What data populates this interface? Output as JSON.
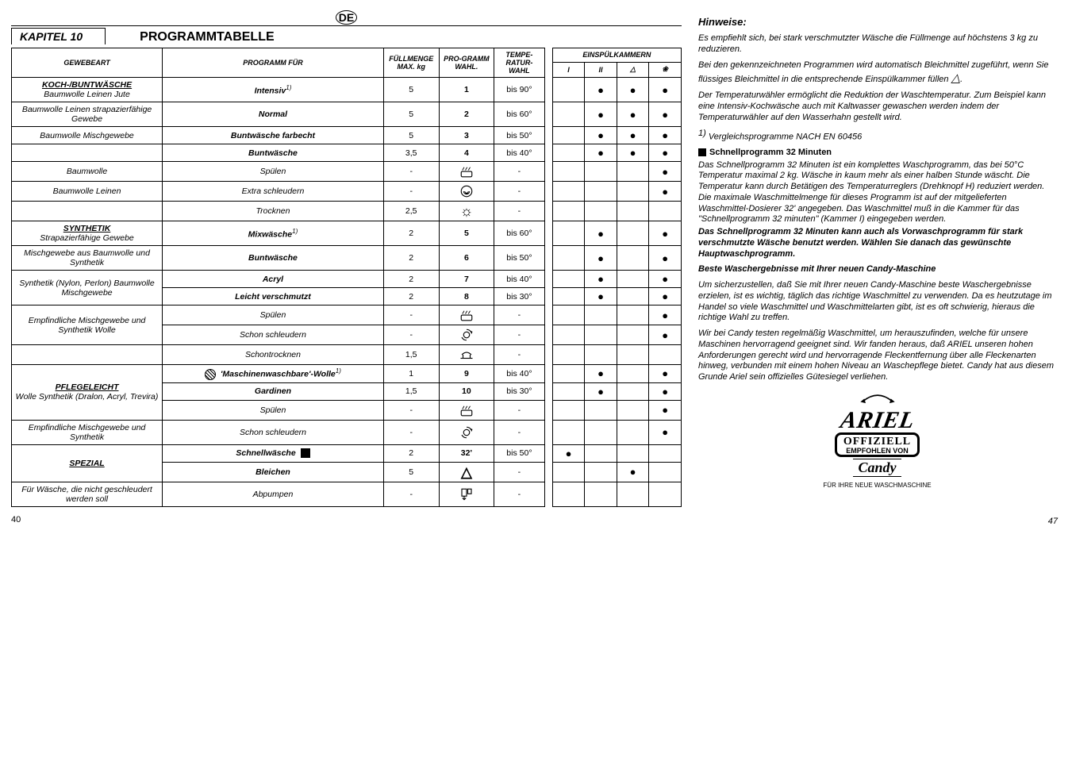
{
  "meta": {
    "langBadge": "DE",
    "kapitel": "KAPITEL 10",
    "title": "PROGRAMMTABELLE",
    "pageLeft": "40",
    "pageRight": "47"
  },
  "headers": {
    "gewebeart": "GEWEBEART",
    "programmFur": "PROGRAMM FÜR",
    "fullmenge": "FÜLLMENGE MAX. kg",
    "prowahl": "PRO-GRAMM WAHL.",
    "tempwahl": "TEMPE-RATUR-WAHL",
    "einspul": "EINSPÜLKAMMERN",
    "k1": "I",
    "k2": "II",
    "k3": "△",
    "k4": "❀"
  },
  "groups": {
    "koch": "KOCH-/BUNTWÄSCHE",
    "kochSub": "Baumwolle Leinen Jute",
    "baumLeinen": "Baumwolle Leinen strapazierfähige Gewebe",
    "baumMisch": "Baumwolle Mischgewebe",
    "baumwolle": "Baumwolle",
    "baumwolleLeinen": "Baumwolle Leinen",
    "synthetik": "SYNTHETIK",
    "synthSub": "Strapazierfähige Gewebe",
    "mischAus": "Mischgewebe aus Baumwolle und Synthetik",
    "nylon": "Synthetik (Nylon, Perlon) Baumwolle Mischgewebe",
    "empfMisch": "Empfindliche Mischgewebe und Synthetik Wolle",
    "pflege": "PFLEGELEICHT",
    "pflegeSub": "Wolle Synthetik (Dralon, Acryl, Trevira)",
    "empfMischSyn": "Empfindliche Mischgewebe und Synthetik",
    "spezial": "SPEZIAL",
    "furWasche": "Für Wäsche, die nicht geschleudert werden soll"
  },
  "rows": {
    "r1": {
      "prog": "Intensiv",
      "note": "1)",
      "kg": "5",
      "wahl": "1",
      "temp": "bis 90°",
      "k": [
        "",
        "●",
        "●",
        "●"
      ]
    },
    "r2": {
      "prog": "Normal",
      "kg": "5",
      "wahl": "2",
      "temp": "bis 60°",
      "k": [
        "",
        "●",
        "●",
        "●"
      ]
    },
    "r3": {
      "prog": "Buntwäsche farbecht",
      "kg": "5",
      "wahl": "3",
      "temp": "bis 50°",
      "k": [
        "",
        "●",
        "●",
        "●"
      ]
    },
    "r4": {
      "prog": "Buntwäsche",
      "kg": "3,5",
      "wahl": "4",
      "temp": "bis 40°",
      "k": [
        "",
        "●",
        "●",
        "●"
      ]
    },
    "r5": {
      "prog": "Spülen",
      "kg": "-",
      "wahl": "RINSE",
      "temp": "-",
      "k": [
        "",
        "",
        "",
        "●"
      ]
    },
    "r6": {
      "prog": "Extra schleudern",
      "kg": "-",
      "wahl": "SPIRAL",
      "temp": "-",
      "k": [
        "",
        "",
        "",
        "●"
      ]
    },
    "r7": {
      "prog": "Trocknen",
      "kg": "2,5",
      "wahl": "SUN",
      "temp": "-",
      "k": [
        "",
        "",
        "",
        ""
      ]
    },
    "r8": {
      "prog": "Mixwäsche",
      "note": "1)",
      "kg": "2",
      "wahl": "5",
      "temp": "bis 60°",
      "k": [
        "",
        "●",
        "",
        "●"
      ]
    },
    "r9": {
      "prog": "Buntwäsche",
      "kg": "2",
      "wahl": "6",
      "temp": "bis 50°",
      "k": [
        "",
        "●",
        "",
        "●"
      ]
    },
    "r10": {
      "prog": "Acryl",
      "kg": "2",
      "wahl": "7",
      "temp": "bis 40°",
      "k": [
        "",
        "●",
        "",
        "●"
      ]
    },
    "r11": {
      "prog": "Leicht verschmutzt",
      "kg": "2",
      "wahl": "8",
      "temp": "bis 30°",
      "k": [
        "",
        "●",
        "",
        "●"
      ]
    },
    "r12": {
      "prog": "Spülen",
      "kg": "-",
      "wahl": "RINSE",
      "temp": "-",
      "k": [
        "",
        "",
        "",
        "●"
      ]
    },
    "r13": {
      "prog": "Schon schleudern",
      "kg": "-",
      "wahl": "SPIN",
      "temp": "-",
      "k": [
        "",
        "",
        "",
        "●"
      ]
    },
    "r14": {
      "prog": "Schontrocknen",
      "kg": "1,5",
      "wahl": "DRY",
      "temp": "-",
      "k": [
        "",
        "",
        "",
        ""
      ]
    },
    "r15": {
      "prog": "'Maschinenwaschbare'-Wolle",
      "note": "1)",
      "pre": "HATCH",
      "kg": "1",
      "wahl": "9",
      "temp": "bis 40°",
      "k": [
        "",
        "●",
        "",
        "●"
      ]
    },
    "r16": {
      "prog": "Gardinen",
      "kg": "1,5",
      "wahl": "10",
      "temp": "bis 30°",
      "k": [
        "",
        "●",
        "",
        "●"
      ]
    },
    "r17": {
      "prog": "Spülen",
      "kg": "-",
      "wahl": "RINSE",
      "temp": "-",
      "k": [
        "",
        "",
        "",
        "●"
      ]
    },
    "r18": {
      "prog": "Schon schleudern",
      "kg": "-",
      "wahl": "SPIN",
      "temp": "-",
      "k": [
        "",
        "",
        "",
        "●"
      ]
    },
    "r19": {
      "prog": "Schnellwäsche",
      "post": "SQ",
      "kg": "2",
      "wahl": "32'",
      "temp": "bis 50°",
      "k": [
        "●",
        "",
        "",
        ""
      ]
    },
    "r20": {
      "prog": "Bleichen",
      "kg": "5",
      "wahl": "TRI",
      "temp": "-",
      "k": [
        "",
        "",
        "●",
        ""
      ]
    },
    "r21": {
      "prog": "Abpumpen",
      "kg": "-",
      "wahl": "DRAIN",
      "temp": "-",
      "k": [
        "",
        "",
        "",
        ""
      ]
    }
  },
  "hinweise": {
    "title": "Hinweise:",
    "p1": "Es empfiehlt sich, bei stark verschmutzter Wäsche die Füllmenge auf höchstens 3 kg zu reduzieren.",
    "p2a": "Bei den gekennzeichneten Programmen wird automatisch Bleichmittel zugeführt, wenn Sie flüssiges Bleichmittel in die entsprechende Einspülkammer füllen ",
    "p2b": ".",
    "p3": "Der Temperaturwähler ermöglicht die Reduktion der Waschtemperatur. Zum Beispiel kann eine Intensiv-Kochwäsche auch mit Kaltwasser gewaschen werden indem der Temperaturwähler auf den Wasserhahn gestellt wird.",
    "p4": "1) Vergleichsprogramme NACH EN 60456",
    "schnellTitle": "Schnellprogramm 32 Minuten",
    "p5": "Das Schnellprogramm 32 Minuten ist ein komplettes Waschprogramm, das bei 50°C Temperatur maximal 2 kg. Wäsche in kaum mehr als einer halben Stunde wäscht. Die Temperatur kann durch Betätigen des Temperaturreglers (Drehknopf H) reduziert werden. Die maximale Waschmittelmenge für dieses Programm ist auf der mitgelieferten Waschmittel-Dosierer 32' angegeben. Das Waschmittel muß in die Kammer für das \"Schnellprogramm 32 minuten\" (Kammer I) eingegeben werden.",
    "p5b": "Das Schnellprogramm 32 Minuten kann auch als Vorwaschprogramm für stark verschmutzte Wäsche benutzt werden. Wählen Sie danach das gewünschte Hauptwaschprogramm.",
    "p6t": "Beste Waschergebnisse mit Ihrer neuen Candy-Maschine",
    "p6": "Um sicherzustellen, daß Sie mit Ihrer neuen Candy-Maschine beste Waschergebnisse erzielen, ist es wichtig, täglich das richtige Waschmittel zu verwenden. Da es heutzutage im Handel so viele Waschmittel und Waschmittelarten gibt, ist es oft schwierig, hieraus die richtige Wahl zu treffen.",
    "p7": "Wir bei Candy testen regelmäßig Waschmittel, um herauszufinden, welche für unsere Maschinen hervorragend geeignet sind. Wir fanden heraus, daß ARIEL unseren hohen Anforderungen gerecht wird und hervorragende Fleckentfernung über alle Fleckenarten hinweg, verbunden mit einem hohen Niveau an Waschepflege bietet. Candy hat aus diesem Grunde Ariel sein offizielles Gütesiegel verliehen."
  },
  "ariel": {
    "logo": "ARIEL",
    "off": "OFFIZIELL",
    "von": "EMPFOHLEN VON",
    "candy": "Candy",
    "sub": "FÜR IHRE NEUE WASCHMASCHINE"
  }
}
